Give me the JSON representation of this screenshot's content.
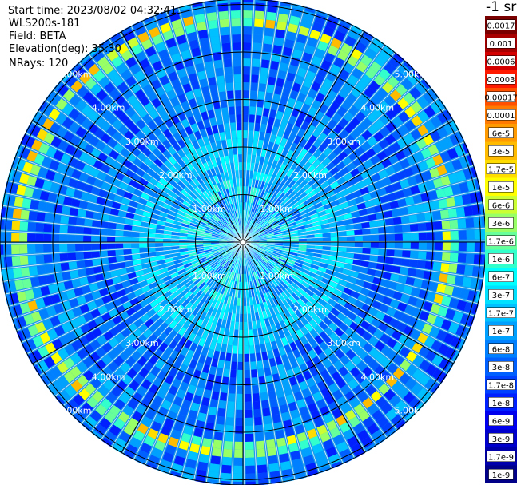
{
  "info": {
    "start_time": "Start time: 2023/08/02 04:32:41",
    "site": "WLS200s-181",
    "field": "Field: BETA",
    "elevation": "Elevation(deg): 35.30",
    "nrays": "NRays: 120"
  },
  "colorbar": {
    "unit": "-1 sr",
    "bins": [
      {
        "label": "0.0017",
        "color": "#7a0000"
      },
      {
        "label": "0.001",
        "color": "#a80000"
      },
      {
        "label": "0.0006",
        "color": "#d40000"
      },
      {
        "label": "0.0003",
        "color": "#ff1a00"
      },
      {
        "label": "0.00017",
        "color": "#ff5000"
      },
      {
        "label": "0.0001",
        "color": "#ff7a00"
      },
      {
        "label": "6e-5",
        "color": "#ff9a00"
      },
      {
        "label": "3e-5",
        "color": "#ffbb00"
      },
      {
        "label": "1.7e-5",
        "color": "#ffdc00"
      },
      {
        "label": "1e-5",
        "color": "#ffff00"
      },
      {
        "label": "6e-6",
        "color": "#ccff33"
      },
      {
        "label": "3e-6",
        "color": "#99ff66"
      },
      {
        "label": "1.7e-6",
        "color": "#66ff99"
      },
      {
        "label": "1e-6",
        "color": "#33ffcc"
      },
      {
        "label": "6e-7",
        "color": "#00ffff"
      },
      {
        "label": "3e-7",
        "color": "#00e0ff"
      },
      {
        "label": "1.7e-7",
        "color": "#00c0ff"
      },
      {
        "label": "1e-7",
        "color": "#00a0ff"
      },
      {
        "label": "6e-8",
        "color": "#0080ff"
      },
      {
        "label": "3e-8",
        "color": "#0060ff"
      },
      {
        "label": "1.7e-8",
        "color": "#0040ff"
      },
      {
        "label": "1e-8",
        "color": "#0020ff"
      },
      {
        "label": "6e-9",
        "color": "#0000ee"
      },
      {
        "label": "3e-9",
        "color": "#0000cc"
      },
      {
        "label": "1.7e-9",
        "color": "#0000aa"
      },
      {
        "label": "1e-9",
        "color": "#000088"
      }
    ]
  },
  "ppi": {
    "range_labels": [
      "1.00km",
      "2.00km",
      "3.00km",
      "4.00km",
      "5.00km"
    ],
    "background_color": "#1e9aeb",
    "aerosol_layer_color": "#ffee00",
    "grid_color": "#000000"
  }
}
